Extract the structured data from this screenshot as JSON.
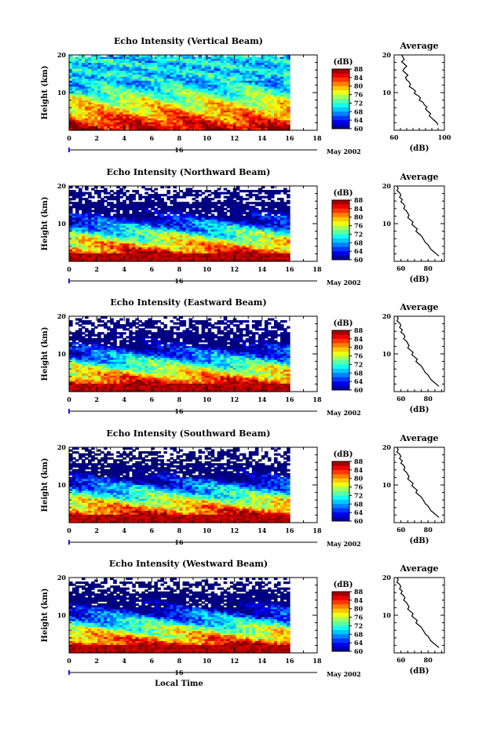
{
  "chart_data": [
    {
      "type": "heatmap",
      "title": "Echo Intensity (Vertical Beam)",
      "ylabel": "Height (km)",
      "yticks": [
        "20",
        "10"
      ],
      "ylim": [
        0,
        20
      ],
      "xticks": [
        "0",
        "2",
        "4",
        "6",
        "8",
        "10",
        "12",
        "14",
        "16",
        "18"
      ],
      "xlim": [
        0,
        18
      ],
      "date_label": "16",
      "month_label": "May 2002",
      "colorbar": {
        "unit": "(dB)",
        "ticks": [
          "88",
          "84",
          "80",
          "76",
          "72",
          "68",
          "64",
          "60"
        ],
        "range": [
          60,
          88
        ]
      },
      "profile": {
        "title": "Average",
        "xlabel": "(dB)",
        "xticks": [
          "60",
          "100"
        ],
        "yticks": [
          "20",
          "10"
        ],
        "xlim": [
          60,
          100
        ],
        "x": [
          66,
          67,
          68,
          66,
          68,
          70,
          68,
          67,
          69,
          71,
          69,
          70,
          72,
          73,
          72,
          75,
          77,
          76,
          79,
          81,
          80,
          83,
          84,
          86,
          85,
          87,
          89,
          88,
          90,
          92,
          94,
          95
        ],
        "y": [
          20,
          19.4,
          18.8,
          18.2,
          17.6,
          17,
          16.4,
          15.8,
          15.2,
          14.6,
          14,
          13.4,
          12.8,
          12.2,
          11.6,
          11,
          10.4,
          9.8,
          9.2,
          8.6,
          8,
          7.4,
          6.8,
          6.2,
          5.6,
          5,
          4.4,
          3.8,
          3.2,
          2.6,
          2,
          1.4
        ]
      }
    },
    {
      "type": "heatmap",
      "title": "Echo Intensity (Northward Beam)",
      "ylabel": "Height (km)",
      "yticks": [
        "20",
        "10"
      ],
      "ylim": [
        0,
        20
      ],
      "xticks": [
        "0",
        "2",
        "4",
        "6",
        "8",
        "10",
        "12",
        "14",
        "16",
        "18"
      ],
      "xlim": [
        0,
        18
      ],
      "date_label": "16",
      "month_label": "May 2002",
      "colorbar": {
        "unit": "(dB)",
        "ticks": [
          "88",
          "84",
          "80",
          "76",
          "72",
          "68",
          "64",
          "60"
        ],
        "range": [
          60,
          88
        ]
      },
      "profile": {
        "title": "Average",
        "xlabel": "(dB)",
        "xticks": [
          "60",
          "80"
        ],
        "yticks": [
          "20",
          "10"
        ],
        "xlim": [
          55,
          92
        ],
        "x": [
          57,
          58,
          57,
          59,
          60,
          59,
          61,
          60,
          62,
          63,
          62,
          64,
          65,
          66,
          65,
          67,
          69,
          68,
          70,
          72,
          71,
          73,
          75,
          76,
          77,
          78,
          80,
          81,
          82,
          84,
          86,
          88
        ],
        "y": [
          20,
          19.4,
          18.8,
          18.2,
          17.6,
          17,
          16.4,
          15.8,
          15.2,
          14.6,
          14,
          13.4,
          12.8,
          12.2,
          11.6,
          11,
          10.4,
          9.8,
          9.2,
          8.6,
          8,
          7.4,
          6.8,
          6.2,
          5.6,
          5,
          4.4,
          3.8,
          3.2,
          2.6,
          2,
          1.4
        ]
      }
    },
    {
      "type": "heatmap",
      "title": "Echo Intensity (Eastward Beam)",
      "ylabel": "Height (km)",
      "yticks": [
        "20",
        "10"
      ],
      "ylim": [
        0,
        20
      ],
      "xticks": [
        "0",
        "2",
        "4",
        "6",
        "8",
        "10",
        "12",
        "14",
        "16",
        "18"
      ],
      "xlim": [
        0,
        18
      ],
      "date_label": "16",
      "month_label": "May 2002",
      "colorbar": {
        "unit": "(dB)",
        "ticks": [
          "88",
          "84",
          "80",
          "76",
          "72",
          "68",
          "64",
          "60"
        ],
        "range": [
          60,
          88
        ]
      },
      "profile": {
        "title": "Average",
        "xlabel": "(dB)",
        "xticks": [
          "60",
          "80"
        ],
        "yticks": [
          "20",
          "10"
        ],
        "xlim": [
          55,
          92
        ],
        "x": [
          57,
          58,
          57,
          59,
          60,
          59,
          61,
          60,
          62,
          63,
          62,
          64,
          65,
          66,
          65,
          67,
          69,
          68,
          70,
          72,
          71,
          73,
          75,
          76,
          77,
          78,
          80,
          81,
          82,
          84,
          86,
          88
        ],
        "y": [
          20,
          19.4,
          18.8,
          18.2,
          17.6,
          17,
          16.4,
          15.8,
          15.2,
          14.6,
          14,
          13.4,
          12.8,
          12.2,
          11.6,
          11,
          10.4,
          9.8,
          9.2,
          8.6,
          8,
          7.4,
          6.8,
          6.2,
          5.6,
          5,
          4.4,
          3.8,
          3.2,
          2.6,
          2,
          1.4
        ]
      }
    },
    {
      "type": "heatmap",
      "title": "Echo Intensity (Southward Beam)",
      "ylabel": "Height (km)",
      "yticks": [
        "20",
        "10"
      ],
      "ylim": [
        0,
        20
      ],
      "xticks": [
        "0",
        "2",
        "4",
        "6",
        "8",
        "10",
        "12",
        "14",
        "16",
        "18"
      ],
      "xlim": [
        0,
        18
      ],
      "date_label": "16",
      "month_label": "May 2002",
      "colorbar": {
        "unit": "(dB)",
        "ticks": [
          "88",
          "84",
          "80",
          "76",
          "72",
          "68",
          "64",
          "60"
        ],
        "range": [
          60,
          88
        ]
      },
      "profile": {
        "title": "Average",
        "xlabel": "(dB)",
        "xticks": [
          "60",
          "80"
        ],
        "yticks": [
          "20",
          "10"
        ],
        "xlim": [
          55,
          92
        ],
        "x": [
          57,
          58,
          57,
          59,
          60,
          59,
          61,
          60,
          62,
          63,
          62,
          64,
          65,
          66,
          65,
          67,
          69,
          68,
          70,
          72,
          71,
          73,
          75,
          76,
          77,
          78,
          80,
          81,
          82,
          84,
          86,
          88
        ],
        "y": [
          20,
          19.4,
          18.8,
          18.2,
          17.6,
          17,
          16.4,
          15.8,
          15.2,
          14.6,
          14,
          13.4,
          12.8,
          12.2,
          11.6,
          11,
          10.4,
          9.8,
          9.2,
          8.6,
          8,
          7.4,
          6.8,
          6.2,
          5.6,
          5,
          4.4,
          3.8,
          3.2,
          2.6,
          2,
          1.4
        ]
      }
    },
    {
      "type": "heatmap",
      "title": "Echo Intensity (Westward Beam)",
      "ylabel": "Height (km)",
      "yticks": [
        "20",
        "10"
      ],
      "ylim": [
        0,
        20
      ],
      "xticks": [
        "0",
        "2",
        "4",
        "6",
        "8",
        "10",
        "12",
        "14",
        "16",
        "18"
      ],
      "xlim": [
        0,
        18
      ],
      "date_label": "16",
      "month_label": "May 2002",
      "xlabel": "Local Time",
      "colorbar": {
        "unit": "(dB)",
        "ticks": [
          "88",
          "84",
          "80",
          "76",
          "72",
          "68",
          "64",
          "60"
        ],
        "range": [
          60,
          88
        ]
      },
      "profile": {
        "title": "Average",
        "xlabel": "(dB)",
        "xticks": [
          "60",
          "80"
        ],
        "yticks": [
          "20",
          "10"
        ],
        "xlim": [
          55,
          92
        ],
        "x": [
          57,
          58,
          57,
          59,
          60,
          59,
          61,
          60,
          62,
          63,
          62,
          64,
          65,
          66,
          65,
          67,
          69,
          68,
          70,
          72,
          71,
          73,
          75,
          76,
          77,
          78,
          80,
          81,
          82,
          84,
          86,
          88
        ],
        "y": [
          20,
          19.4,
          18.8,
          18.2,
          17.6,
          17,
          16.4,
          15.8,
          15.2,
          14.6,
          14,
          13.4,
          12.8,
          12.2,
          11.6,
          11,
          10.4,
          9.8,
          9.2,
          8.6,
          8,
          7.4,
          6.8,
          6.2,
          5.6,
          5,
          4.4,
          3.8,
          3.2,
          2.6,
          2,
          1.4
        ]
      }
    }
  ]
}
